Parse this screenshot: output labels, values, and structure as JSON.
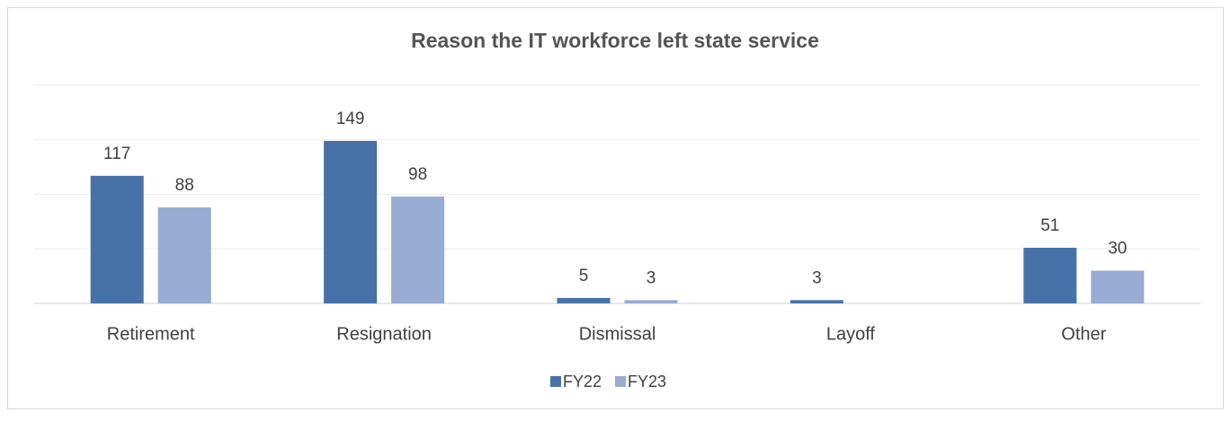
{
  "chart_data": {
    "type": "bar",
    "title": "Reason the IT workforce left state service",
    "categories": [
      "Retirement",
      "Resignation",
      "Dismissal",
      "Layoff",
      "Other"
    ],
    "series": [
      {
        "name": "FY22",
        "color": "#4672a8",
        "values": [
          117,
          149,
          5,
          3,
          51
        ]
      },
      {
        "name": "FY23",
        "color": "#97abd3",
        "values": [
          88,
          98,
          3,
          null,
          30
        ]
      }
    ],
    "ylim": [
      0,
      200
    ],
    "yticks": [
      0,
      50,
      100,
      150,
      200
    ],
    "grid": true
  }
}
